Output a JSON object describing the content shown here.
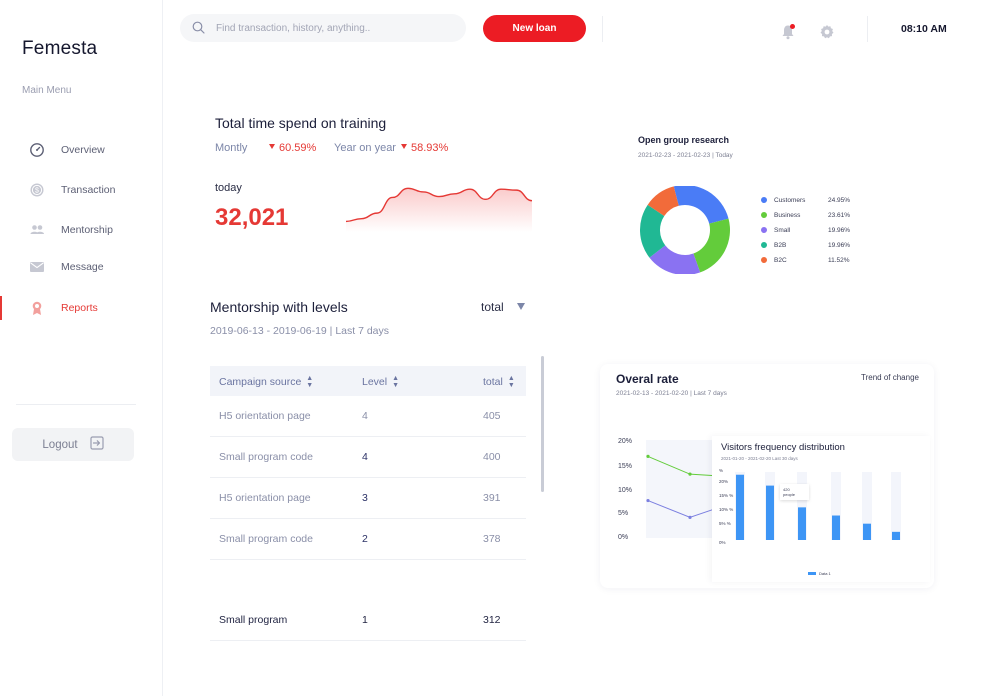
{
  "app": {
    "brand": "Femesta",
    "main_menu_label": "Main Menu"
  },
  "sidebar": {
    "items": [
      {
        "label": "Overview",
        "icon": "speedometer-icon",
        "active": false
      },
      {
        "label": "Transaction",
        "icon": "coin-icon",
        "active": false
      },
      {
        "label": "Mentorship",
        "icon": "users-icon",
        "active": false
      },
      {
        "label": "Message",
        "icon": "envelope-icon",
        "active": false
      },
      {
        "label": "Reports",
        "icon": "award-icon",
        "active": true
      }
    ],
    "logout_label": "Logout"
  },
  "header": {
    "search_placeholder": "Find transaction, history, anything..",
    "new_loan_label": "New loan",
    "time": "08:10 AM",
    "has_notification": true
  },
  "training": {
    "title": "Total time spend on training",
    "monthly_label": "Montly",
    "monthly_change": "60.59%",
    "yearly_label": "Year on year",
    "yearly_change": "58.93%",
    "today_label": "today",
    "today_value": "32,021",
    "trend_values": [
      10,
      16,
      28,
      62,
      82,
      74,
      64,
      70,
      80,
      58,
      80,
      78,
      55
    ]
  },
  "mentorship": {
    "title": "Mentorship with levels",
    "filter_value": "total",
    "date_range": "2019-06-13 - 2019-06-19 | Last 7 days",
    "columns": [
      "Campaign source",
      "Level",
      "total"
    ],
    "rows": [
      {
        "source": "H5 orientation page",
        "level": "4",
        "total": "405"
      },
      {
        "source": "Small program code",
        "level": "4",
        "total": "400"
      },
      {
        "source": "H5 orientation page",
        "level": "3",
        "total": "391"
      },
      {
        "source": "Small program code",
        "level": "2",
        "total": "378"
      }
    ],
    "extra_row": {
      "source": "Small program",
      "level": "1",
      "total": "312"
    }
  },
  "open_group": {
    "title": "Open group research",
    "date_range": "2021-02-23 - 2021-02-23 | Today",
    "legend": [
      {
        "name": "Customers",
        "value": "24.95%",
        "color": "#4a7cf6"
      },
      {
        "name": "Business",
        "value": "23.61%",
        "color": "#63cc3b"
      },
      {
        "name": "Small",
        "value": "19.96%",
        "color": "#8a72f2"
      },
      {
        "name": "B2B",
        "value": "19.96%",
        "color": "#20b894"
      },
      {
        "name": "B2C",
        "value": "11.52%",
        "color": "#f26b3a"
      }
    ]
  },
  "overal_rate": {
    "title": "Overal rate",
    "trend_label": "Trend of change",
    "date_range": "2021-02-13 - 2021-02-20 | Last 7 days",
    "y_ticks": [
      "20%",
      "15%",
      "10%",
      "5%",
      "0%"
    ]
  },
  "visitors": {
    "title": "Visitors frequency distribution",
    "date_range": "2021-01-20 - 2021-02-20 Last 30 days",
    "y_ticks": [
      "%",
      "20%",
      "15% %",
      "10% %",
      "5% %",
      "0%"
    ],
    "tooltip": "420\npeople",
    "legend_label": "Data 1"
  },
  "chart_data": [
    {
      "type": "pie",
      "title": "Open group research",
      "categories": [
        "Customers",
        "Business",
        "Small",
        "B2B",
        "B2C"
      ],
      "values": [
        24.95,
        23.61,
        19.96,
        19.96,
        11.52
      ]
    },
    {
      "type": "line",
      "title": "Overal rate",
      "ylim": [
        0,
        20
      ],
      "series": [
        {
          "values": [
            17,
            13.3,
            13
          ]
        },
        {
          "values": [
            7.8,
            4.3,
            6
          ]
        }
      ]
    },
    {
      "type": "bar",
      "title": "Visitors frequency distribution",
      "series": [
        {
          "name": "Data 1",
          "values": [
            24,
            20,
            12,
            9,
            6,
            3
          ]
        }
      ],
      "ylim": [
        0,
        25
      ]
    }
  ]
}
